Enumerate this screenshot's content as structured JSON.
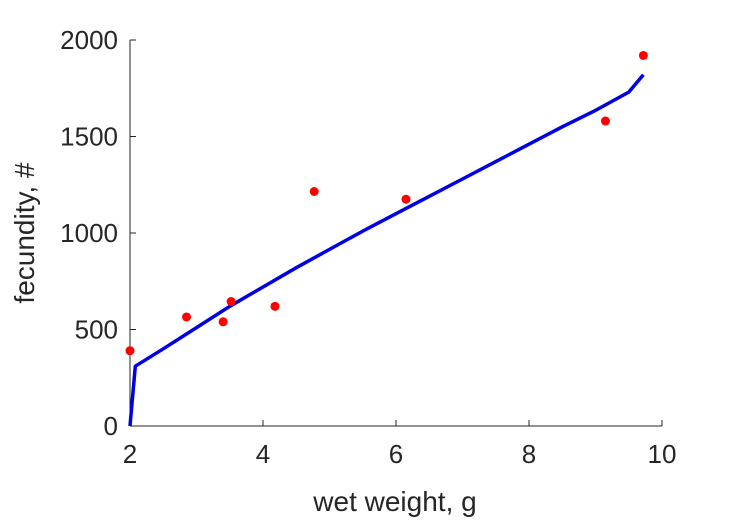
{
  "chart_data": {
    "type": "scatter",
    "title": "",
    "xlabel": "wet weight, g",
    "ylabel": "fecundity, #",
    "xlim": [
      2,
      10
    ],
    "ylim": [
      0,
      2000
    ],
    "xticks": [
      2,
      4,
      6,
      8,
      10
    ],
    "yticks": [
      0,
      500,
      1000,
      1500,
      2000
    ],
    "grid": false,
    "box": false,
    "series": [
      {
        "kind": "scatter",
        "color": "#ff0000",
        "points": [
          [
            2.0,
            390
          ],
          [
            2.85,
            565
          ],
          [
            3.4,
            540
          ],
          [
            3.52,
            645
          ],
          [
            4.18,
            620
          ],
          [
            4.77,
            1215
          ],
          [
            6.15,
            1175
          ],
          [
            9.15,
            1580
          ],
          [
            9.72,
            1920
          ]
        ]
      },
      {
        "kind": "line",
        "color": "#0000e6",
        "points": [
          [
            2.0,
            0
          ],
          [
            2.08,
            310
          ],
          [
            2.5,
            400
          ],
          [
            3.0,
            510
          ],
          [
            3.5,
            620
          ],
          [
            4.0,
            720
          ],
          [
            4.5,
            820
          ],
          [
            5.0,
            915
          ],
          [
            5.5,
            1010
          ],
          [
            6.0,
            1100
          ],
          [
            6.5,
            1190
          ],
          [
            7.0,
            1280
          ],
          [
            7.5,
            1370
          ],
          [
            8.0,
            1460
          ],
          [
            8.5,
            1550
          ],
          [
            9.0,
            1635
          ],
          [
            9.5,
            1730
          ],
          [
            9.72,
            1820
          ]
        ]
      }
    ]
  }
}
